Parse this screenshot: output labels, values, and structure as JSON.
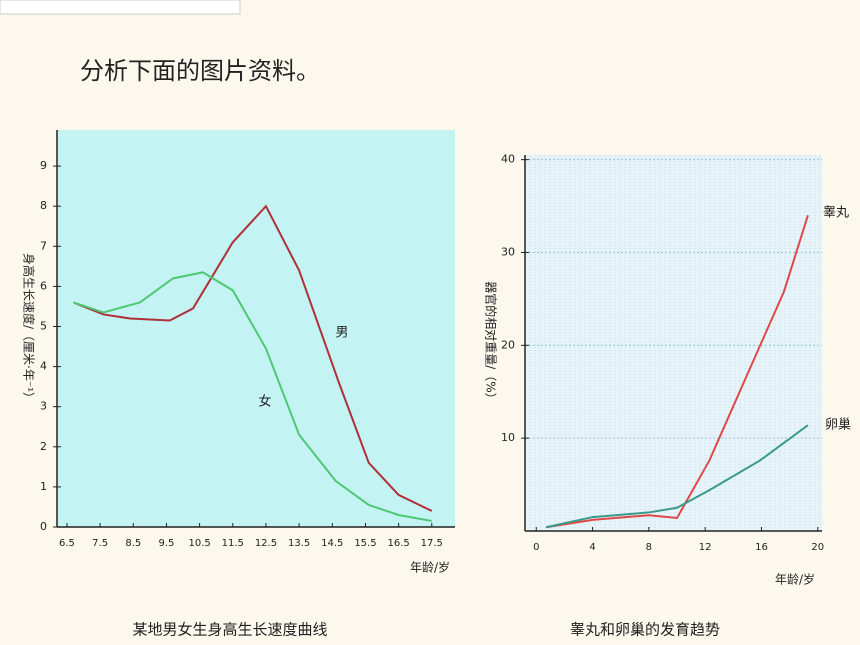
{
  "title": "分析下面的图片资料。",
  "chart_data": [
    {
      "type": "line",
      "caption": "某地男女生身高生长速度曲线",
      "y_label": "身高生长速度/（厘米·年⁻¹）",
      "x_label": "年龄/岁",
      "xlim": [
        6.2,
        18.2
      ],
      "ylim": [
        0,
        9.9
      ],
      "xticks": [
        6.5,
        7.5,
        8.5,
        9.5,
        10.5,
        11.5,
        12.5,
        13.5,
        14.5,
        15.5,
        16.5,
        17.5
      ],
      "yticks": [
        0,
        1,
        2,
        3,
        4,
        5,
        6,
        7,
        8,
        9
      ],
      "grid": false,
      "background": "#c4f3f3",
      "series": [
        {
          "name": "男",
          "color": "#b0303a",
          "x": [
            6.7,
            7.6,
            8.4,
            9.6,
            10.3,
            11.5,
            12.5,
            13.5,
            14.7,
            15.6,
            16.5,
            17.5
          ],
          "values": [
            5.6,
            5.3,
            5.2,
            5.15,
            5.45,
            7.1,
            8.0,
            6.4,
            3.6,
            1.6,
            0.8,
            0.4
          ]
        },
        {
          "name": "女",
          "color": "#4fc873",
          "x": [
            6.7,
            7.6,
            8.7,
            9.7,
            10.6,
            11.5,
            12.5,
            13.5,
            14.6,
            15.6,
            16.5,
            17.5
          ],
          "values": [
            5.6,
            5.35,
            5.6,
            6.2,
            6.35,
            5.9,
            4.45,
            2.3,
            1.15,
            0.55,
            0.3,
            0.15
          ]
        }
      ]
    },
    {
      "type": "line",
      "caption": "睾丸和卵巢的发育趋势",
      "y_label": "器官的相对重量/（%）",
      "x_label": "年龄/岁",
      "xlim": [
        -0.8,
        20.3
      ],
      "ylim": [
        0,
        40.5
      ],
      "xticks": [
        0,
        4,
        8,
        12,
        16,
        20
      ],
      "yticks": [
        10,
        20,
        30,
        40
      ],
      "grid": true,
      "background": "#e6f4fa",
      "series": [
        {
          "name": "睾丸",
          "color": "#e04848",
          "x": [
            0.7,
            4,
            8,
            10,
            12.3,
            14.8,
            17.6,
            19.3
          ],
          "values": [
            0.4,
            1.2,
            1.7,
            1.4,
            7.6,
            16.2,
            25.8,
            34
          ]
        },
        {
          "name": "卵巢",
          "color": "#3a9a8a",
          "x": [
            0.7,
            4,
            8,
            10,
            12.3,
            15.9,
            19.3
          ],
          "values": [
            0.4,
            1.5,
            2,
            2.5,
            4.4,
            7.6,
            11.4
          ]
        }
      ]
    }
  ]
}
